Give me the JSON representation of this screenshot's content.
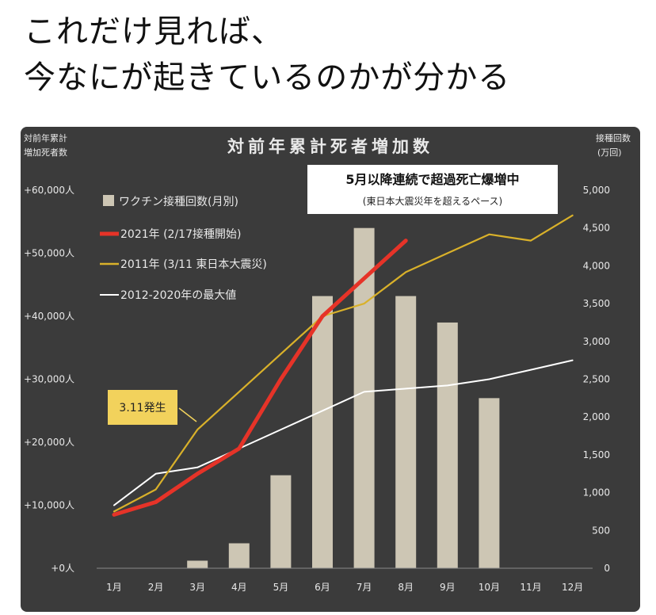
{
  "headline": {
    "line1": "これだけ見れば、",
    "line2": "今なにが起きているのかが分かる"
  },
  "chart_data": {
    "type": "bar",
    "title": "対前年累計死者増加数",
    "y_left_label_line1": "対前年累計",
    "y_left_label_line2": "増加死者数",
    "y_right_label_line1": "接種回数",
    "y_right_label_line2": "(万回)",
    "categories": [
      "1月",
      "2月",
      "3月",
      "4月",
      "5月",
      "6月",
      "7月",
      "8月",
      "9月",
      "10月",
      "11月",
      "12月"
    ],
    "y_left_ticks": [
      "+0人",
      "+10,000人",
      "+20,000人",
      "+30,000人",
      "+40,000人",
      "+50,000人",
      "+60,000人"
    ],
    "y_left_lim": [
      0,
      60000
    ],
    "y_right_ticks": [
      "0",
      "500",
      "1,000",
      "1,500",
      "2,000",
      "2,500",
      "3,000",
      "3,500",
      "4,000",
      "4,500",
      "5,000"
    ],
    "y_right_lim": [
      0,
      5000
    ],
    "series": [
      {
        "name": "ワクチン接種回数(月別)",
        "type": "bar",
        "axis": "right",
        "values": [
          0,
          0,
          100,
          330,
          1230,
          3600,
          4500,
          3600,
          3250,
          2250,
          null,
          null
        ]
      },
      {
        "name": "2021年 (2/17接種開始)",
        "type": "line",
        "axis": "left",
        "values": [
          8500,
          10500,
          15000,
          19000,
          30000,
          40000,
          46000,
          52000,
          null,
          null,
          null,
          null
        ]
      },
      {
        "name": "2011年 (3/11 東日本大震災)",
        "type": "line",
        "axis": "left",
        "values": [
          9000,
          12500,
          22000,
          28000,
          34000,
          40000,
          42000,
          47000,
          50000,
          53000,
          52000,
          56000
        ]
      },
      {
        "name": "2012-2020年の最大値",
        "type": "line",
        "axis": "left",
        "values": [
          10000,
          15000,
          16000,
          19000,
          22000,
          25000,
          28000,
          28500,
          29000,
          30000,
          31500,
          33000
        ]
      }
    ],
    "colors": {
      "bars": "#cdc6b4",
      "line_2021": "#e63328",
      "line_2011": "#d9b12a",
      "line_max": "#ffffff",
      "annotation_box": "#f2d25c"
    },
    "annotations": {
      "callout_main": "5月以降連続で超過死亡爆増中",
      "callout_sub": "(東日本大震災年を超えるペース)",
      "event_label": "3.11発生"
    }
  }
}
